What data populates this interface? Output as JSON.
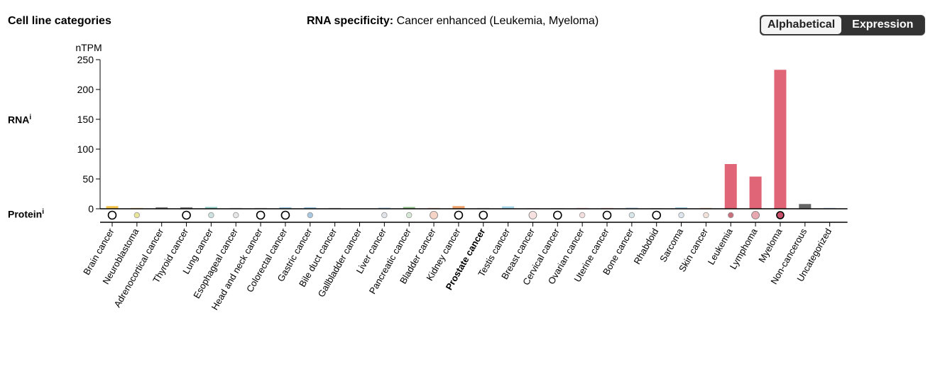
{
  "header": {
    "title": "Cell line categories",
    "specificity_label": "RNA specificity:",
    "specificity_value": "Cancer enhanced (Leukemia, Myeloma)",
    "sort_options": [
      "Alphabetical",
      "Expression"
    ],
    "selected_sort": "Alphabetical"
  },
  "rows": {
    "rna_label": "RNA",
    "protein_label": "Protein",
    "info_marker": "i"
  },
  "chart_data": {
    "type": "bar",
    "ylabel": "nTPM",
    "ylim": [
      0,
      250
    ],
    "yticks": [
      0,
      50,
      100,
      150,
      200,
      250
    ],
    "highlighted_category": "Prostate cancer",
    "categories": [
      "Brain cancer",
      "Neuroblastoma",
      "Adrenocortical cancer",
      "Thyroid cancer",
      "Lung cancer",
      "Esophageal cancer",
      "Head and neck cancer",
      "Colorectal cancer",
      "Gastric cancer",
      "Bile duct cancer",
      "Gallbladder cancer",
      "Liver cancer",
      "Pancreatic cancer",
      "Bladder cancer",
      "Kidney cancer",
      "Prostate cancer",
      "Testis cancer",
      "Breast cancer",
      "Cervical cancer",
      "Ovarian cancer",
      "Uterine cancer",
      "Bone cancer",
      "Rhabdoid",
      "Sarcoma",
      "Skin cancer",
      "Leukemia",
      "Lymphoma",
      "Myeloma",
      "Non-cancerous",
      "Uncategorized"
    ],
    "values": [
      4.5,
      1.5,
      2.5,
      2.5,
      3,
      1.5,
      1.5,
      2.5,
      2.5,
      1.5,
      0,
      2,
      3,
      1.5,
      4.5,
      1.5,
      4,
      1,
      1,
      1.5,
      1.5,
      2,
      1,
      2.5,
      1.5,
      75,
      54,
      233,
      8,
      1.5
    ],
    "colors": [
      "#f5c44a",
      "#f2d898",
      "#7e7e7e",
      "#7e7e7e",
      "#8ccac4",
      "#cfcfcf",
      "#cfcfcf",
      "#9ac2dc",
      "#9ac2dc",
      "#d0d0d0",
      "#d0d0d0",
      "#bcd4e6",
      "#8fbf8a",
      "#f3c9b4",
      "#f0a36a",
      "#d8d8d8",
      "#a8d6ea",
      "#f3c9c7",
      "#d8d8d8",
      "#f3c9c7",
      "#f3c9c7",
      "#bcd4e6",
      "#d0d0d0",
      "#a8cfe0",
      "#f3c9b4",
      "#e06677",
      "#e06677",
      "#e06677",
      "#666666",
      "#bcd4e6"
    ],
    "protein": [
      {
        "level": "not detected"
      },
      {
        "level": "low",
        "fill": "#e9e59a"
      },
      null,
      {
        "level": "not detected"
      },
      {
        "level": "low",
        "fill": "#cce2e0"
      },
      {
        "level": "low",
        "fill": "#e6e6e6"
      },
      {
        "level": "not detected"
      },
      {
        "level": "not detected"
      },
      {
        "level": "low",
        "fill": "#a8c8e2"
      },
      null,
      null,
      {
        "level": "low",
        "fill": "#e0e4e8"
      },
      {
        "level": "low",
        "fill": "#d8e8d6"
      },
      {
        "level": "medium",
        "fill": "#f5d3c6"
      },
      {
        "level": "not detected"
      },
      {
        "level": "not detected"
      },
      null,
      {
        "level": "medium",
        "fill": "#f7e0e0"
      },
      {
        "level": "not detected"
      },
      {
        "level": "low",
        "fill": "#f5dede"
      },
      {
        "level": "not detected"
      },
      {
        "level": "low",
        "fill": "#d6e6ea"
      },
      {
        "level": "not detected"
      },
      {
        "level": "low",
        "fill": "#dde6ee"
      },
      {
        "level": "low",
        "fill": "#f3e2da"
      },
      {
        "level": "low",
        "fill": "#c9707c"
      },
      {
        "level": "medium",
        "fill": "#e7a8b0"
      },
      {
        "level": "high",
        "fill": "#c9506a"
      },
      null,
      null
    ]
  }
}
